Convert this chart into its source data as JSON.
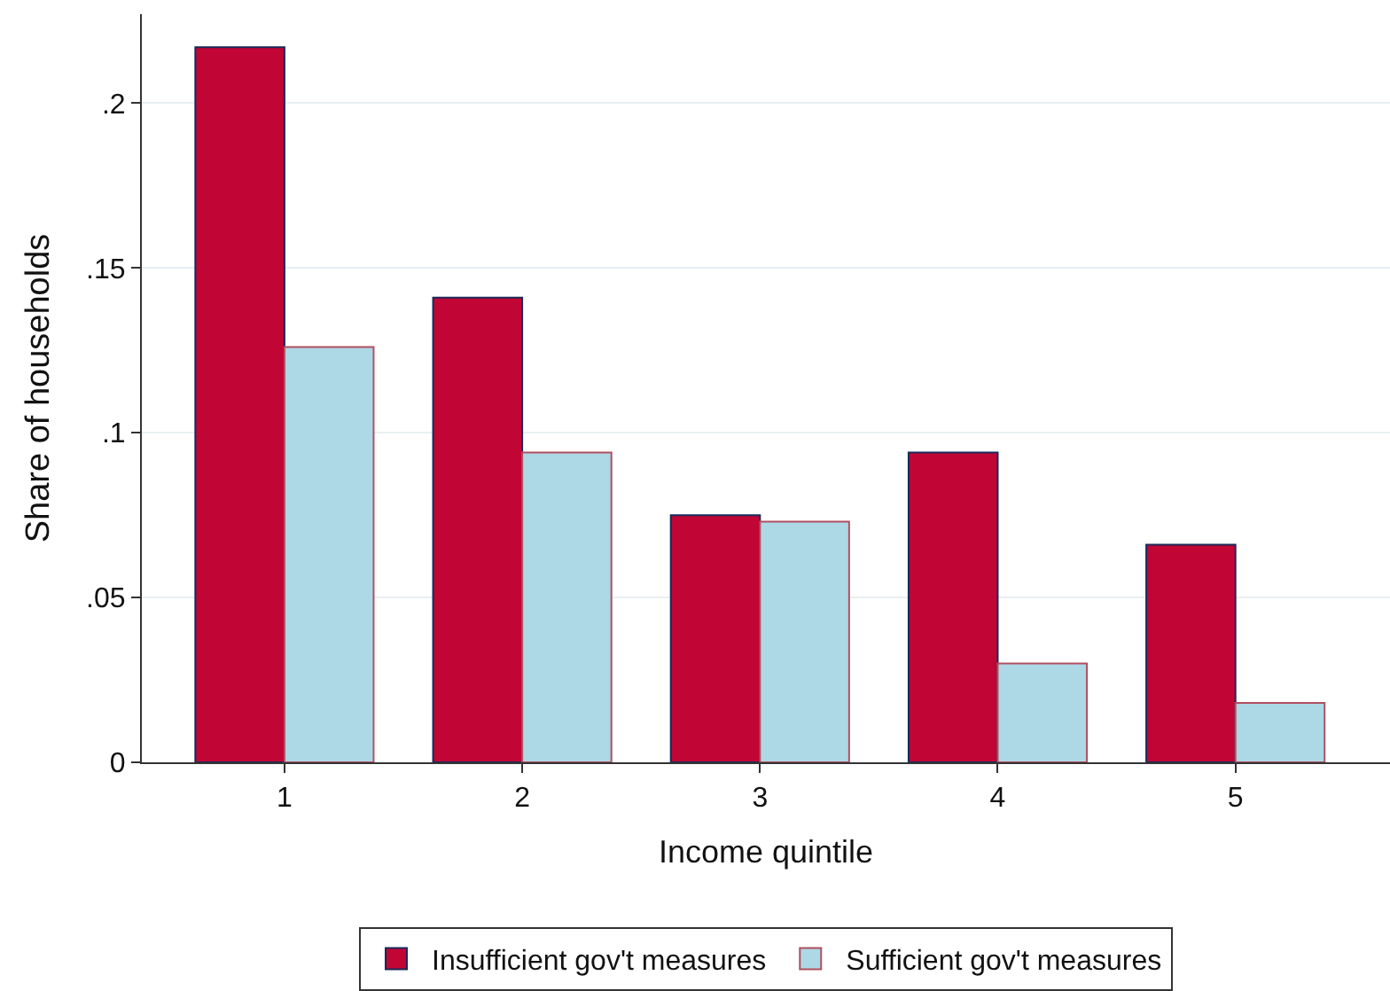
{
  "chart_data": {
    "type": "bar",
    "xlabel": "Income quintile",
    "ylabel": "Share of households",
    "categories": [
      "1",
      "2",
      "3",
      "4",
      "5"
    ],
    "series": [
      {
        "name": "Insufficient gov't measures",
        "color": "#c10534",
        "values": [
          0.217,
          0.141,
          0.075,
          0.094,
          0.066
        ]
      },
      {
        "name": "Sufficient gov't measures",
        "color": "#add8e6",
        "values": [
          0.126,
          0.094,
          0.073,
          0.03,
          0.018
        ]
      }
    ],
    "ylim": [
      0,
      0.227
    ],
    "yticks": [
      {
        "value": 0,
        "label": "0"
      },
      {
        "value": 0.05,
        "label": ".05"
      },
      {
        "value": 0.1,
        "label": ".1"
      },
      {
        "value": 0.15,
        "label": ".15"
      },
      {
        "value": 0.2,
        "label": ".2"
      }
    ],
    "grid": "y",
    "legend": "bottom"
  }
}
